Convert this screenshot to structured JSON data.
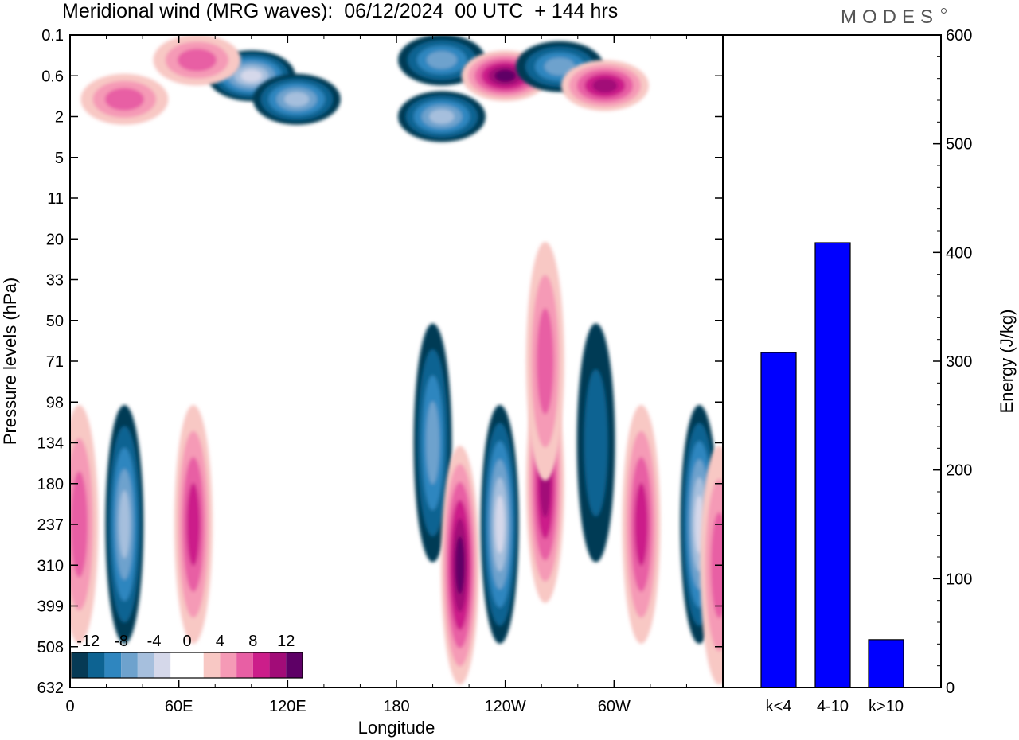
{
  "header": {
    "title": "Meridional wind (MRG waves):  06/12/2024  00 UTC  + 144 hrs",
    "brand": "MODES"
  },
  "colors": {
    "bar_fill": "#0000ff",
    "negative_scale": [
      "#063a55",
      "#0d6392",
      "#2f86bf",
      "#6ea2cd",
      "#a6bfdd",
      "#d5d8ea"
    ],
    "positive_scale": [
      "#f8c8c4",
      "#f59ab6",
      "#e85fa4",
      "#cc1e8a",
      "#a20c78",
      "#5e0066"
    ]
  },
  "chart_data": [
    {
      "type": "heatmap",
      "xlabel": "Longitude",
      "ylabel": "Pressure levels (hPa)",
      "x_ticks": [
        "0",
        "60E",
        "120E",
        "180",
        "120W",
        "60W"
      ],
      "y_ticks": [
        "0.1",
        "0.6",
        "2",
        "5",
        "11",
        "20",
        "33",
        "50",
        "71",
        "98",
        "134",
        "180",
        "237",
        "310",
        "399",
        "508",
        "632"
      ],
      "colorbar": {
        "labels": [
          "-12",
          "-8",
          "-4",
          "0",
          "4",
          "8",
          "12"
        ],
        "levels": [
          -14,
          -12,
          -10,
          -8,
          -6,
          -4,
          -2,
          2,
          4,
          6,
          8,
          10,
          12,
          14
        ]
      },
      "features": [
        {
          "lon": 100,
          "level": "0.6",
          "value": -13
        },
        {
          "lon": 125,
          "level": "1.2",
          "value": -11
        },
        {
          "lon": 205,
          "level": "2",
          "value": -11
        },
        {
          "lon": 205,
          "level": "0.3",
          "value": -8
        },
        {
          "lon": 240,
          "level": "0.6",
          "value": 12
        },
        {
          "lon": 270,
          "level": "0.4",
          "value": -8
        },
        {
          "lon": 295,
          "level": "0.8",
          "value": 10
        },
        {
          "lon": 70,
          "level": "0.3",
          "value": 7
        },
        {
          "lon": 30,
          "level": "1.2",
          "value": 7
        },
        {
          "lon": 30,
          "level": "237",
          "value": -11
        },
        {
          "lon": 68,
          "level": "237",
          "value": 9
        },
        {
          "lon": 200,
          "level": "134",
          "value": -8
        },
        {
          "lon": 215,
          "level": "310",
          "value": 12
        },
        {
          "lon": 237,
          "level": "237",
          "value": -14
        },
        {
          "lon": 262,
          "level": "180",
          "value": 11
        },
        {
          "lon": 262,
          "level": "71",
          "value": 7
        },
        {
          "lon": 290,
          "level": "134",
          "value": -5
        },
        {
          "lon": 315,
          "level": "237",
          "value": 8
        },
        {
          "lon": 347,
          "level": "237",
          "value": -12
        },
        {
          "lon": 5,
          "level": "237",
          "value": 7
        },
        {
          "lon": 358,
          "level": "310",
          "value": 6
        }
      ]
    },
    {
      "type": "bar",
      "categories": [
        "k<4",
        "4-10",
        "k>10"
      ],
      "values": [
        308,
        409,
        44
      ],
      "ylabel": "Energy (J/kg)",
      "ylim": [
        0,
        600
      ],
      "y_ticks": [
        "0",
        "100",
        "200",
        "300",
        "400",
        "500",
        "600"
      ]
    }
  ]
}
